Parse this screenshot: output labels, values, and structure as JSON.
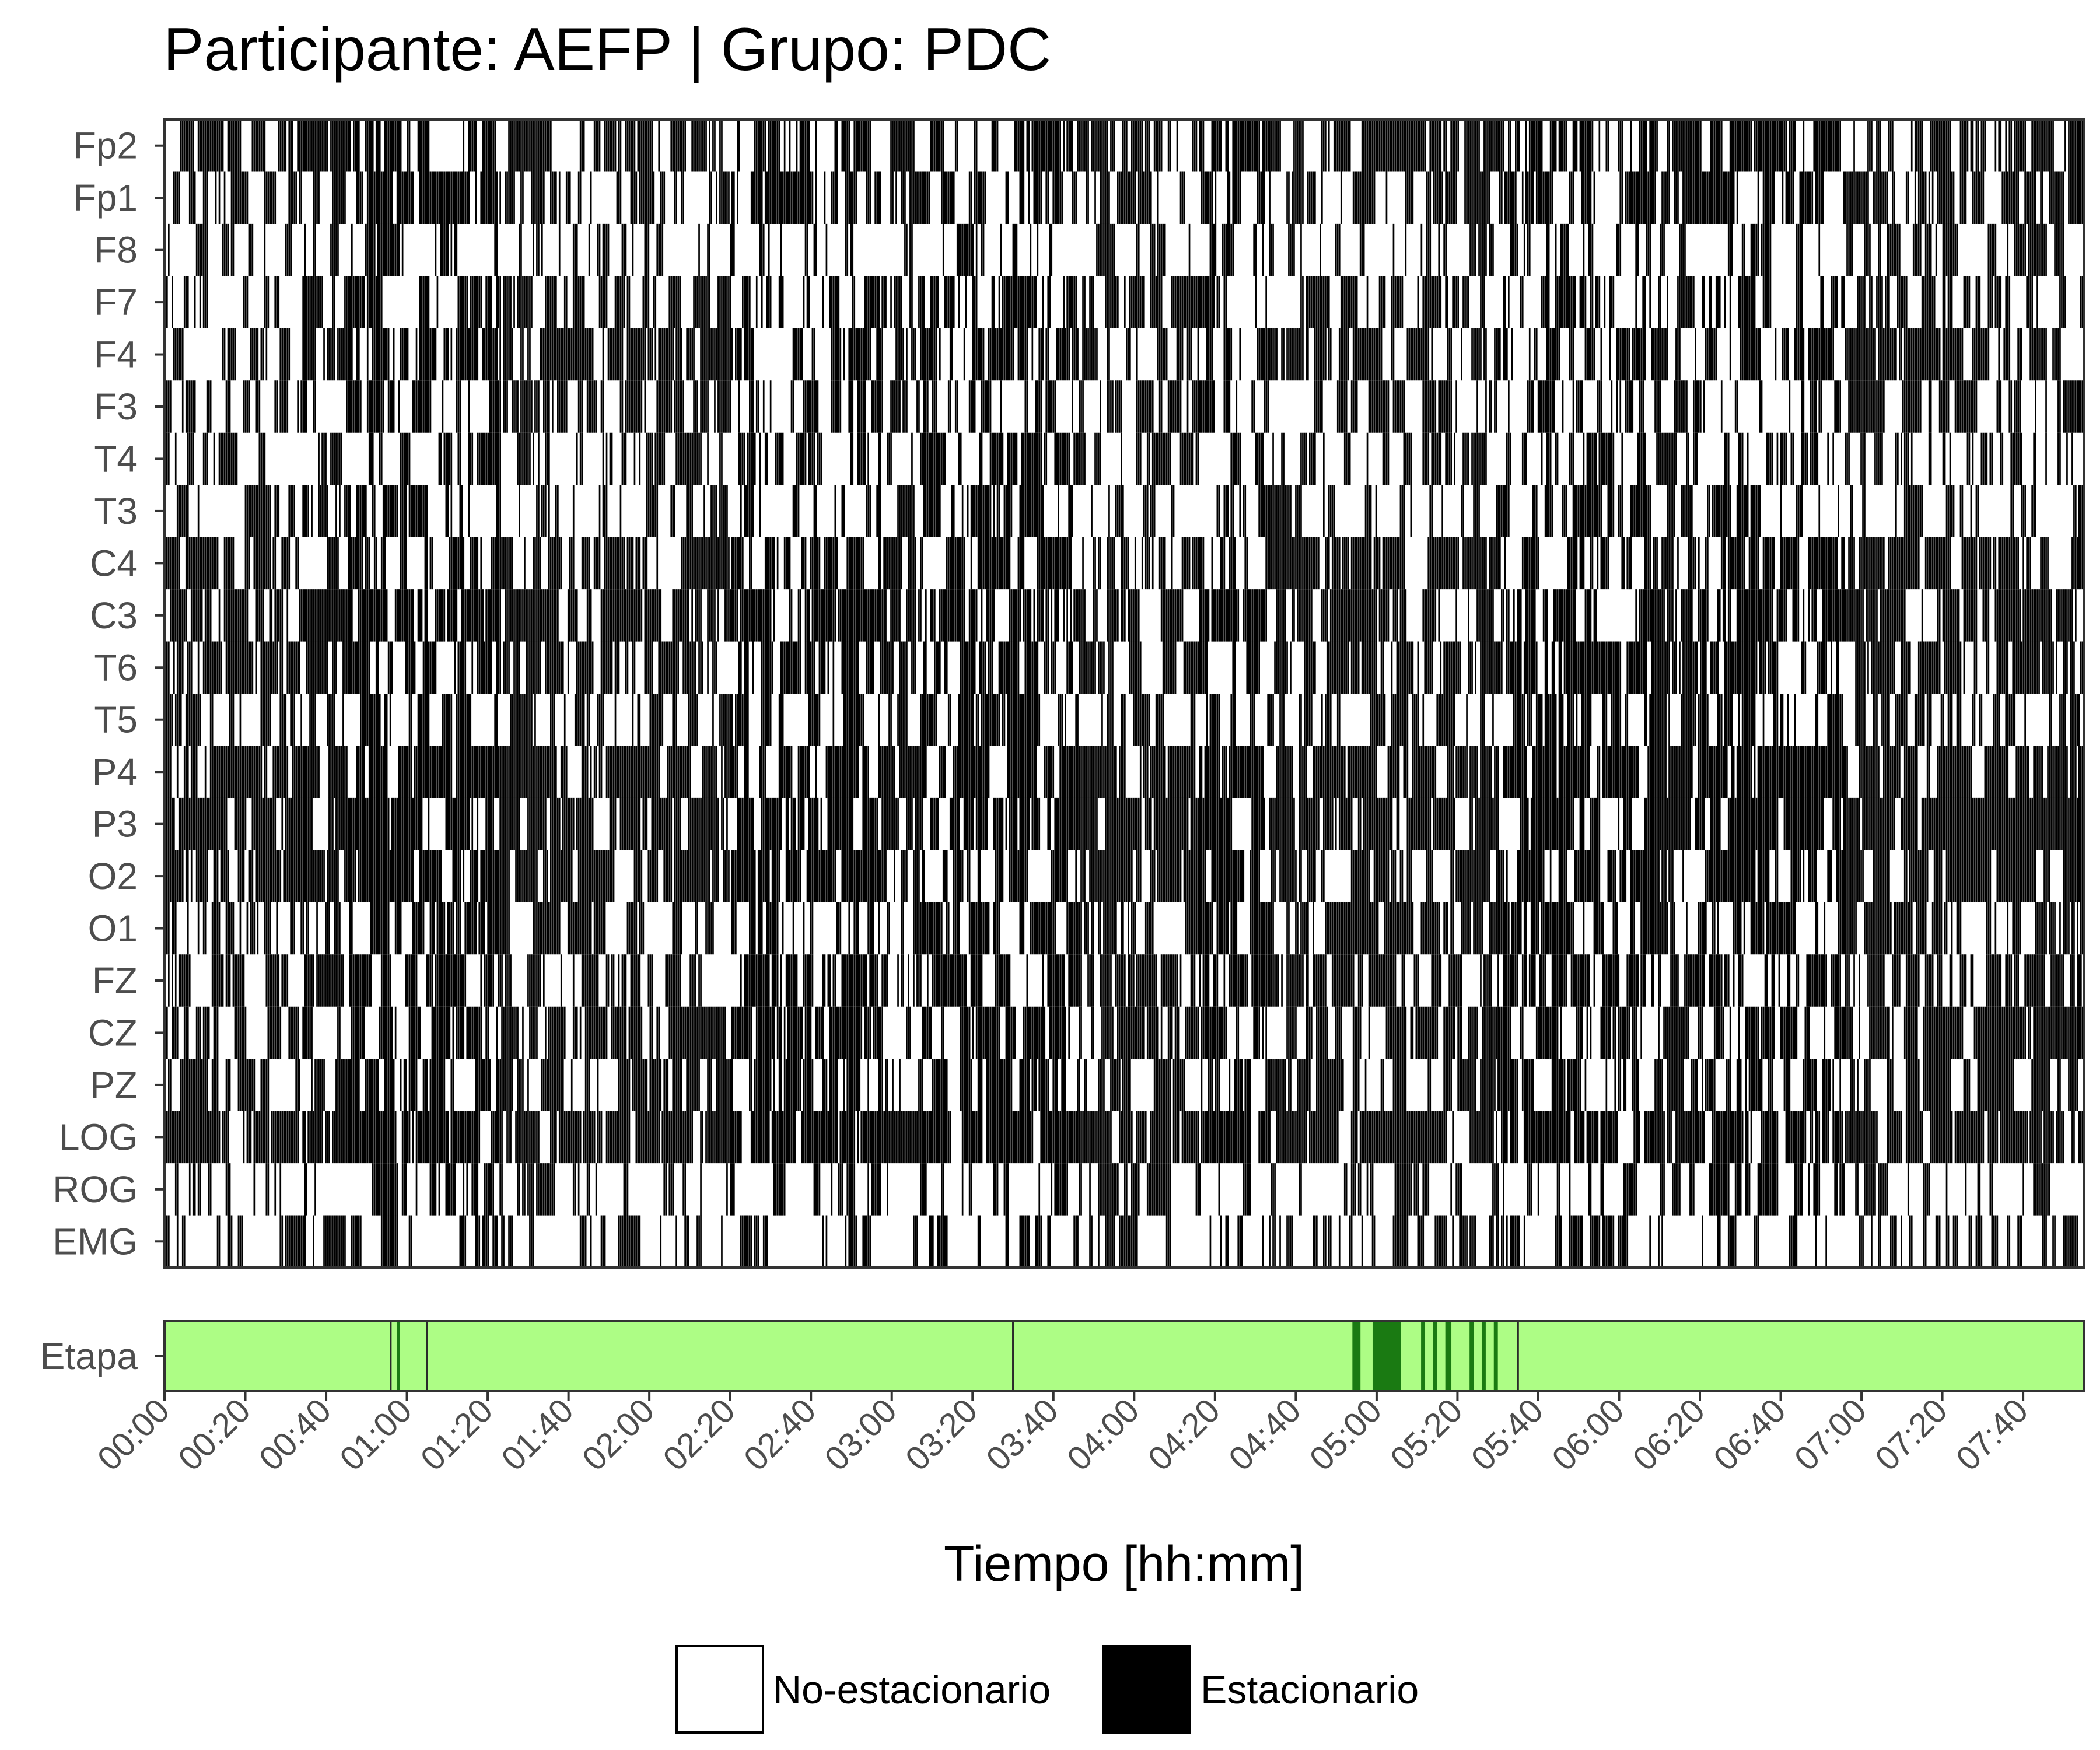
{
  "chart_data": {
    "type": "heatmap",
    "title": "Participante: AEFP | Grupo: PDC",
    "xlabel": "Tiempo [hh:mm]",
    "x_ticks": [
      "00:00",
      "00:20",
      "00:40",
      "01:00",
      "01:20",
      "01:40",
      "02:00",
      "02:20",
      "02:40",
      "03:00",
      "03:20",
      "03:40",
      "04:00",
      "04:20",
      "04:40",
      "05:00",
      "05:20",
      "05:40",
      "06:00",
      "06:20",
      "06:40",
      "07:00",
      "07:20",
      "07:40"
    ],
    "x_range_minutes": [
      0,
      475
    ],
    "channels": [
      "Fp2",
      "Fp1",
      "F8",
      "F7",
      "F4",
      "F3",
      "T4",
      "T3",
      "C4",
      "C3",
      "T6",
      "T5",
      "P4",
      "P3",
      "O2",
      "O1",
      "FZ",
      "CZ",
      "PZ",
      "LOG",
      "ROG",
      "EMG"
    ],
    "channel_stationary_density": [
      0.62,
      0.58,
      0.28,
      0.45,
      0.52,
      0.45,
      0.42,
      0.36,
      0.66,
      0.66,
      0.62,
      0.45,
      0.78,
      0.74,
      0.72,
      0.55,
      0.6,
      0.6,
      0.58,
      0.82,
      0.3,
      0.34
    ],
    "stage_track": {
      "label": "Etapa",
      "colors": {
        "background": "#adfd85",
        "marker": "#1a7a12",
        "border": "#2a2a2a"
      },
      "thin_markers_minutes": [
        56,
        65,
        210,
        335
      ],
      "thick_markers_minutes": [
        [
          57.5,
          58.3
        ],
        [
          294,
          296
        ],
        [
          299,
          306
        ],
        [
          311,
          312
        ],
        [
          314,
          315
        ],
        [
          317,
          318.5
        ],
        [
          323,
          324
        ],
        [
          326,
          327
        ],
        [
          329,
          330
        ]
      ]
    },
    "legend": {
      "position": "bottom",
      "items": [
        {
          "label": "No-estacionario",
          "color": "#ffffff"
        },
        {
          "label": "Estacionario",
          "color": "#000000"
        }
      ]
    },
    "grid": false
  }
}
